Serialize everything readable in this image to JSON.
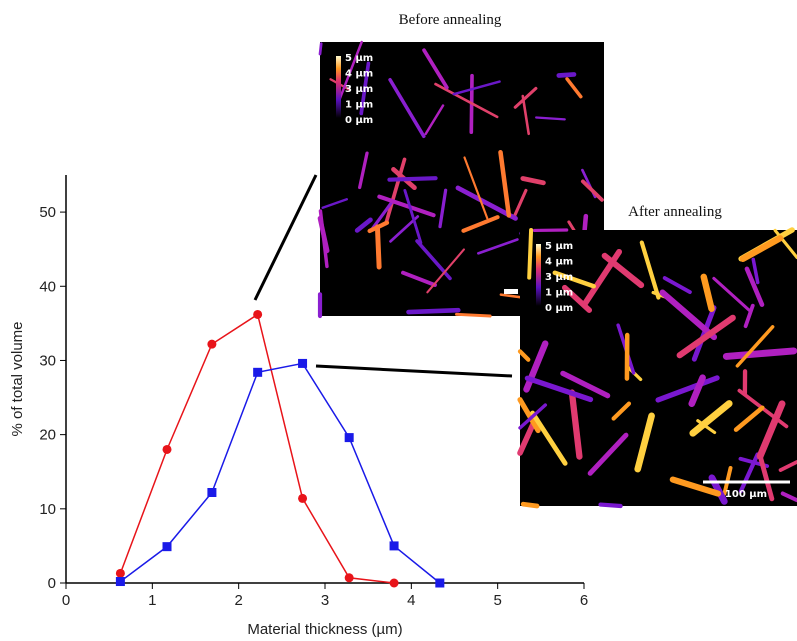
{
  "chart_data": {
    "type": "line",
    "x_label": "Material thickness (µm)",
    "y_label": "% of total volume",
    "xlim": [
      0,
      6
    ],
    "xticks": [
      0,
      1,
      2,
      3,
      4,
      5,
      6
    ],
    "ylim": [
      0,
      55
    ],
    "yticks": [
      0,
      10,
      20,
      30,
      40,
      50
    ],
    "series": [
      {
        "color": "#e8141a",
        "marker": "circle",
        "x": [
          0.63,
          1.17,
          1.69,
          2.22,
          2.74,
          3.28,
          3.8
        ],
        "values": [
          1.3,
          18,
          32.2,
          36.2,
          11.4,
          0.7,
          0
        ]
      },
      {
        "color": "#1a1ae8",
        "marker": "square",
        "x": [
          0.63,
          1.17,
          1.69,
          2.22,
          2.74,
          3.28,
          3.8,
          4.33
        ],
        "values": [
          0.2,
          4.9,
          12.2,
          28.4,
          29.6,
          19.6,
          5,
          0
        ]
      }
    ]
  },
  "insets": [
    {
      "title": "Before annealing",
      "colorbar_labels": [
        "5 µm",
        "4 µm",
        "3 µm",
        "1 µm",
        "0 µm"
      ]
    },
    {
      "title": "After annealing",
      "colorbar_labels": [
        "5 µm",
        "4 µm",
        "3 µm",
        "1 µm",
        "0 µm"
      ],
      "scale_bar": "100 µm"
    }
  ]
}
